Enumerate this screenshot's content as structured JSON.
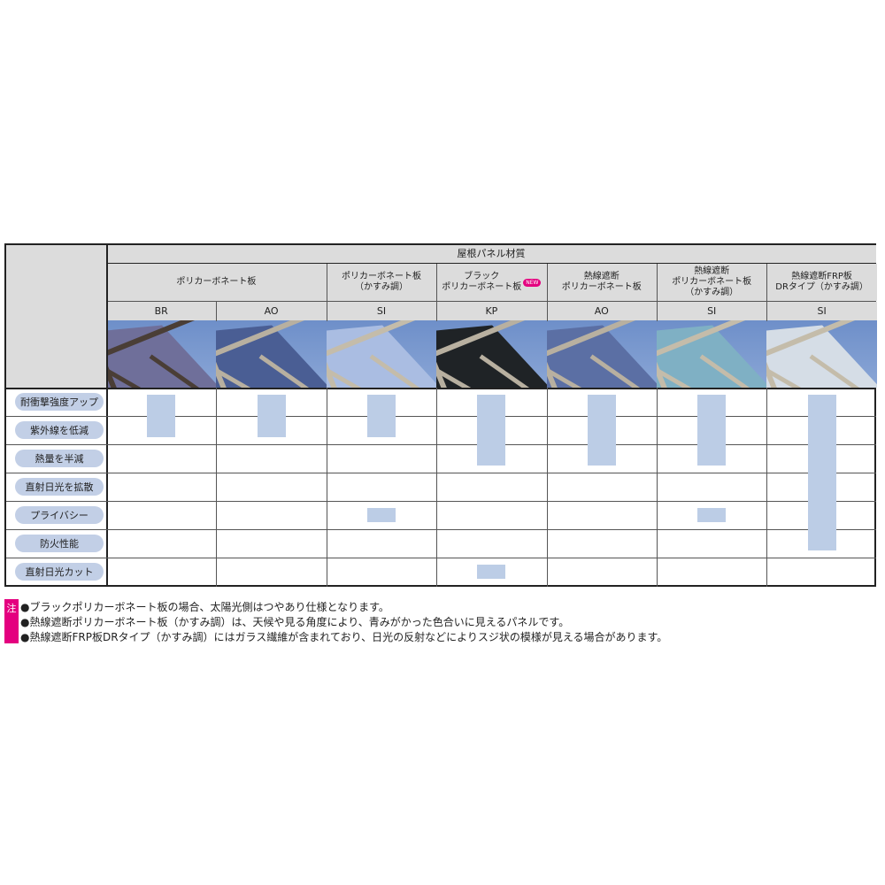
{
  "header": {
    "title": "屋根パネル材質"
  },
  "groups": [
    {
      "label": "ポリカーボネート板",
      "span": 2
    },
    {
      "label": "ポリカーボネート板\n（かすみ調）",
      "span": 1
    },
    {
      "label": "ブラック\nポリカーボネート板",
      "span": 1,
      "badge": "NEW"
    },
    {
      "label": "熱線遮断\nポリカーボネート板",
      "span": 1
    },
    {
      "label": "熱線遮断\nポリカーボネート板\n（かすみ調）",
      "span": 1
    },
    {
      "label": "熱線遮断FRP板\nDRタイプ（かすみ調）",
      "span": 1
    }
  ],
  "columns": [
    {
      "code": "BR",
      "frame_color": "#4a3e36",
      "panel_color": "#6f6f9a"
    },
    {
      "code": "AO",
      "frame_color": "#b8b0a0",
      "panel_color": "#4a5e94"
    },
    {
      "code": "SI",
      "frame_color": "#c4bcaa",
      "panel_color": "#aabde2"
    },
    {
      "code": "KP",
      "frame_color": "#b8b0a0",
      "panel_color": "#1f2326"
    },
    {
      "code": "AO",
      "frame_color": "#b8b0a0",
      "panel_color": "#5b6fa4"
    },
    {
      "code": "SI",
      "frame_color": "#c4bcaa",
      "panel_color": "#7fb0c4"
    },
    {
      "code": "SI",
      "frame_color": "#c4bcaa",
      "panel_color": "#d5dde6"
    }
  ],
  "features": [
    "耐衝撃強度アップ",
    "紫外線を低減",
    "熱量を半減",
    "直射日光を拡散",
    "プライバシー",
    "防火性能",
    "直射日光カット"
  ],
  "matrix": [
    [
      1,
      1,
      1,
      1,
      1,
      1,
      1
    ],
    [
      1,
      1,
      1,
      1,
      1,
      1,
      1
    ],
    [
      0,
      0,
      0,
      1,
      1,
      1,
      1
    ],
    [
      0,
      0,
      0,
      0,
      0,
      0,
      1
    ],
    [
      0,
      0,
      1,
      0,
      0,
      1,
      1
    ],
    [
      0,
      0,
      0,
      0,
      0,
      0,
      1
    ],
    [
      0,
      0,
      0,
      1,
      0,
      0,
      0
    ]
  ],
  "colors": {
    "bar": "#bccde6",
    "pill": "#c2cfe6",
    "note_tag": "#e4007f",
    "header_bg": "#dcdcdc"
  },
  "notes": {
    "tag": "注",
    "items": [
      "●ブラックポリカーボネート板の場合、太陽光側はつやあり仕様となります。",
      "●熱線遮断ポリカーボネート板（かすみ調）は、天候や見る角度により、青みがかった色合いに見えるパネルです。",
      "●熱線遮断FRP板DRタイプ（かすみ調）にはガラス繊維が含まれており、日光の反射などによりスジ状の模様が見える場合があります。"
    ]
  }
}
